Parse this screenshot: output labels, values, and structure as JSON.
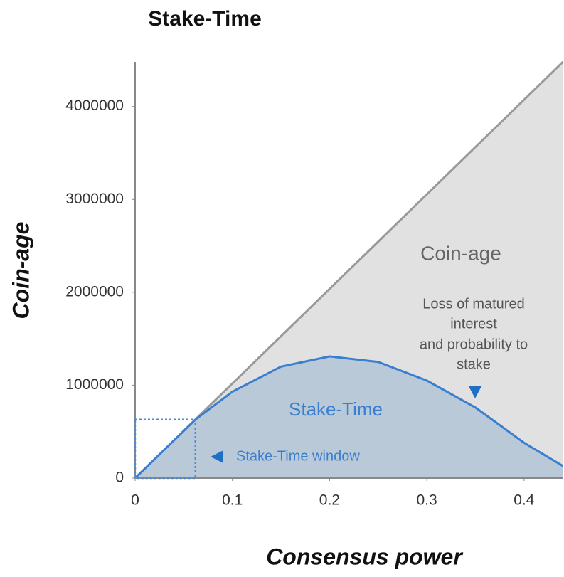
{
  "chart_data": {
    "type": "area",
    "title": "Stake-Time",
    "x_label": "Consensus power",
    "y_label": "Coin-age",
    "xlim": [
      0,
      0.44
    ],
    "ylim": [
      0,
      4480000
    ],
    "xticks": [
      0,
      0.1,
      0.2,
      0.3,
      0.4
    ],
    "yticks": [
      0,
      1000000,
      2000000,
      3000000,
      4000000
    ],
    "series": [
      {
        "name": "Coin-age",
        "color": "#999999",
        "fill": "#e1e1e1",
        "x": [
          0,
          0.44
        ],
        "values": [
          0,
          4480000
        ]
      },
      {
        "name": "Stake-Time",
        "color": "#3a7fcf",
        "fill": "#b9c9d8",
        "x": [
          0,
          0.062,
          0.1,
          0.15,
          0.2,
          0.25,
          0.3,
          0.35,
          0.4,
          0.44
        ],
        "values": [
          0,
          630000,
          930000,
          1200000,
          1310000,
          1250000,
          1050000,
          760000,
          380000,
          130000
        ]
      }
    ],
    "annotations": {
      "loss": [
        "Loss of matured",
        "interest",
        "and probability to",
        "stake"
      ],
      "window": {
        "label": "Stake-Time window",
        "x": 0.062,
        "y": 630000
      }
    }
  }
}
